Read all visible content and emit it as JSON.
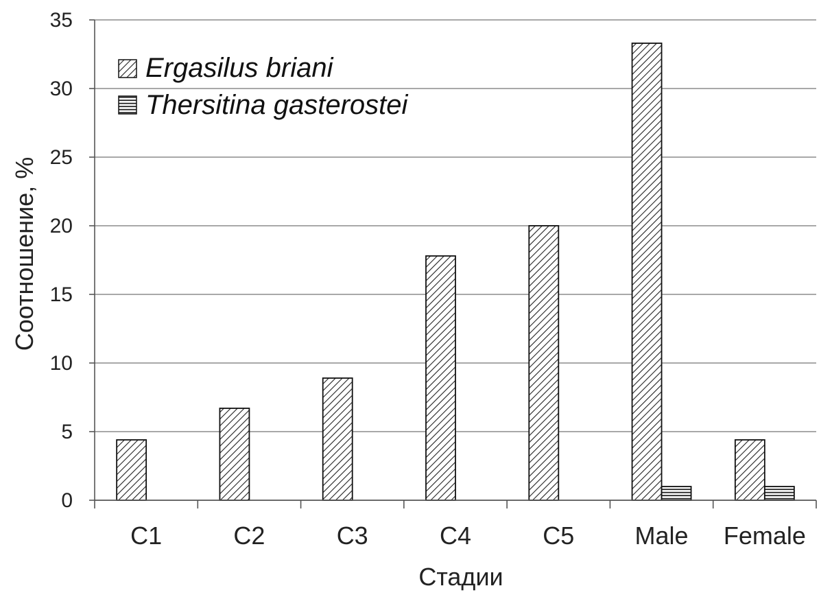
{
  "chart_data": {
    "type": "bar",
    "title": "",
    "xlabel": "Стадии",
    "ylabel": "Соотношение, %",
    "ylim": [
      0,
      35
    ],
    "yticks": [
      0,
      5,
      10,
      15,
      20,
      25,
      30,
      35
    ],
    "grid": true,
    "legend_position": "top-left",
    "categories": [
      "C1",
      "C2",
      "C3",
      "C4",
      "C5",
      "Male",
      "Female"
    ],
    "series": [
      {
        "name": "Ergasilus briani",
        "pattern": "diagonal-hatch",
        "values": [
          4.4,
          6.7,
          8.9,
          17.8,
          20.0,
          33.3,
          4.4
        ]
      },
      {
        "name": "Thersitina gasterostei",
        "pattern": "horizontal-hatch",
        "values": [
          0,
          0,
          0,
          0,
          0,
          1.0,
          1.0
        ]
      }
    ],
    "colors": {
      "bar_outline": "#111111",
      "hatch": "#222222",
      "grid": "#8c8c8c",
      "axis": "#555555"
    }
  }
}
